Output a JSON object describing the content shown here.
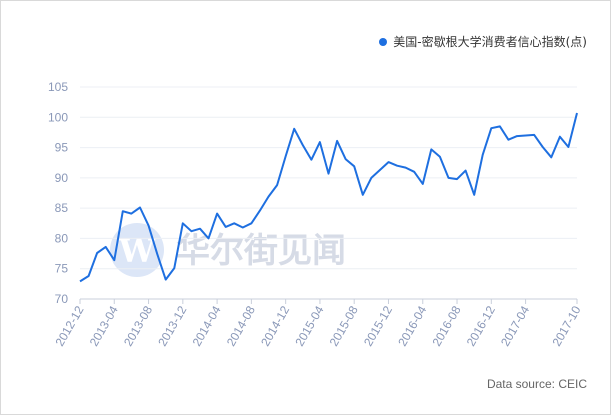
{
  "legend": {
    "label": "美国-密歇根大学消费者信心指数(点)",
    "color": "#1e6fe0"
  },
  "source": "Data source: CEIC",
  "watermark": {
    "letter": "W",
    "text": "华尔街见闻"
  },
  "chart_data": {
    "type": "line",
    "title": "",
    "xlabel": "",
    "ylabel": "",
    "ylim": [
      70,
      105
    ],
    "yticks": [
      70,
      75,
      80,
      85,
      90,
      95,
      100,
      105
    ],
    "xticks": [
      "2012-12",
      "2013-04",
      "2013-08",
      "2013-12",
      "2014-04",
      "2014-08",
      "2014-12",
      "2015-04",
      "2015-08",
      "2015-12",
      "2016-04",
      "2016-08",
      "2016-12",
      "2017-04",
      "2017-10"
    ],
    "grid": true,
    "legend_position": "top-right",
    "series": [
      {
        "name": "美国-密歇根大学消费者信心指数(点)",
        "color": "#1e6fe0",
        "x": [
          "2012-12",
          "2013-01",
          "2013-02",
          "2013-03",
          "2013-04",
          "2013-05",
          "2013-06",
          "2013-07",
          "2013-08",
          "2013-09",
          "2013-10",
          "2013-11",
          "2013-12",
          "2014-01",
          "2014-02",
          "2014-03",
          "2014-04",
          "2014-05",
          "2014-06",
          "2014-07",
          "2014-08",
          "2014-09",
          "2014-10",
          "2014-11",
          "2014-12",
          "2015-01",
          "2015-02",
          "2015-03",
          "2015-04",
          "2015-05",
          "2015-06",
          "2015-07",
          "2015-08",
          "2015-09",
          "2015-10",
          "2015-11",
          "2015-12",
          "2016-01",
          "2016-02",
          "2016-03",
          "2016-04",
          "2016-05",
          "2016-06",
          "2016-07",
          "2016-08",
          "2016-09",
          "2016-10",
          "2016-11",
          "2016-12",
          "2017-01",
          "2017-02",
          "2017-03",
          "2017-04",
          "2017-05",
          "2017-06",
          "2017-07",
          "2017-08",
          "2017-09",
          "2017-10"
        ],
        "values": [
          72.9,
          73.8,
          77.6,
          78.6,
          76.4,
          84.5,
          84.1,
          85.1,
          82.1,
          77.5,
          73.2,
          75.1,
          82.5,
          81.2,
          81.6,
          80.0,
          84.1,
          81.9,
          82.5,
          81.8,
          82.5,
          84.6,
          86.9,
          88.8,
          93.6,
          98.1,
          95.4,
          93.0,
          95.9,
          90.7,
          96.1,
          93.1,
          91.9,
          87.2,
          90.0,
          91.3,
          92.6,
          92.0,
          91.7,
          91.0,
          89.0,
          94.7,
          93.5,
          90.0,
          89.8,
          91.2,
          87.2,
          93.8,
          98.2,
          98.5,
          96.3,
          96.9,
          97.0,
          97.1,
          95.1,
          93.4,
          96.8,
          95.1,
          100.7
        ]
      }
    ]
  }
}
